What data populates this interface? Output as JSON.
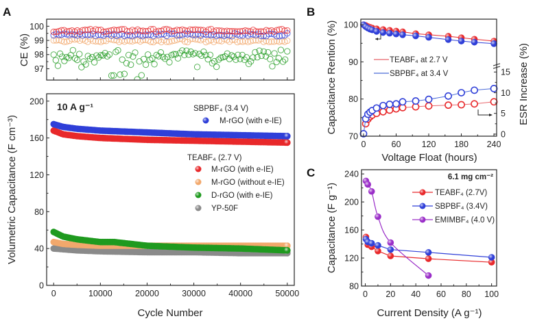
{
  "figure": {
    "panels": [
      {
        "letter": "A"
      },
      {
        "letter": "B"
      },
      {
        "letter": "C"
      }
    ]
  },
  "colors": {
    "red": "#e8282a",
    "blue": "#2f3fd8",
    "orange": "#f2a86c",
    "green": "#1f9a1f",
    "gray": "#8a8a8a",
    "purple": "#9a2ec8",
    "lightred": "#e8646a",
    "lightblue": "#4a6ad8"
  },
  "chart_data": [
    {
      "id": "A-top",
      "type": "scatter",
      "title": "",
      "xlabel": "",
      "ylabel": "CE (%)",
      "xlim": [
        -1500,
        51500
      ],
      "ylim": [
        96.2,
        100.5
      ],
      "yticks": [
        97,
        98,
        99,
        100
      ],
      "yticklabels": [
        "97",
        "98",
        "99",
        "100"
      ],
      "series": [
        {
          "name": "TEABF4 M-rGO (with e-IE)",
          "color_key": "red",
          "mean": 99.7,
          "spread": 0.1
        },
        {
          "name": "SBPBF4 M-rGO (with e-IE)",
          "color_key": "blue",
          "mean": 99.4,
          "spread": 0.1
        },
        {
          "name": "TEABF4 M-rGO (without e-IE)",
          "color_key": "orange",
          "mean": 99.0,
          "spread": 0.12
        },
        {
          "name": "TEABF4 D-rGO (with e-IE)",
          "color_key": "green",
          "mean": 98.0,
          "spread": 0.35
        }
      ]
    },
    {
      "id": "A-main",
      "type": "scatter",
      "title": "",
      "annotation": "10 A g⁻¹",
      "xlabel": "Cycle Number",
      "ylabel": "Volumetric Capacitance (F cm⁻³)",
      "xlim": [
        -1500,
        51500
      ],
      "ylim": [
        0,
        208
      ],
      "xticks": [
        0,
        10000,
        20000,
        30000,
        40000,
        50000
      ],
      "xticklabels": [
        "0",
        "10000",
        "20000",
        "30000",
        "40000",
        "50000"
      ],
      "yticks": [
        0,
        40,
        80,
        120,
        160,
        200
      ],
      "yticklabels": [
        "0",
        "40",
        "80",
        "120",
        "160",
        "200"
      ],
      "legend_groups": [
        {
          "title": "SBPBF₄ (3.4 V)",
          "items": [
            {
              "label": "M-rGO (with e-IE)",
              "color_key": "blue"
            }
          ]
        },
        {
          "title": "TEABF₄ (2.7 V)",
          "items": [
            {
              "label": "M-rGO (with e-IE)",
              "color_key": "red"
            },
            {
              "label": "M-rGO (without e-IE)",
              "color_key": "orange"
            },
            {
              "label": "D-rGO (with e-IE)",
              "color_key": "green"
            },
            {
              "label": "YP-50F",
              "color_key": "gray"
            }
          ]
        }
      ],
      "series": [
        {
          "name": "SBPBF4 M-rGO (with e-IE)",
          "color_key": "blue",
          "x": [
            0,
            2000,
            5000,
            10000,
            20000,
            30000,
            40000,
            50000
          ],
          "y": [
            175,
            172,
            170,
            168,
            166,
            164,
            163,
            162
          ]
        },
        {
          "name": "TEABF4 M-rGO (with e-IE)",
          "color_key": "red",
          "x": [
            0,
            2000,
            5000,
            10000,
            20000,
            30000,
            40000,
            50000
          ],
          "y": [
            168,
            164,
            162,
            160,
            158,
            157,
            156,
            155
          ]
        },
        {
          "name": "TEABF4 M-rGO (without e-IE)",
          "color_key": "orange",
          "x": [
            0,
            2000,
            5000,
            10000,
            20000,
            30000,
            40000,
            50000
          ],
          "y": [
            47,
            45,
            44,
            43,
            43,
            43,
            43,
            43
          ]
        },
        {
          "name": "TEABF4 D-rGO (with e-IE)",
          "color_key": "green",
          "x": [
            0,
            2000,
            5000,
            10000,
            13000,
            20000,
            30000,
            40000,
            50000
          ],
          "y": [
            58,
            53,
            50,
            47,
            47,
            43,
            41,
            40,
            38
          ]
        },
        {
          "name": "TEABF4 YP-50F",
          "color_key": "gray",
          "x": [
            0,
            5000,
            10000,
            20000,
            30000,
            40000,
            50000
          ],
          "y": [
            40,
            38,
            37,
            36,
            36,
            35,
            35
          ]
        }
      ]
    },
    {
      "id": "B",
      "type": "line",
      "title": "",
      "xlabel": "Voltage Float (hours)",
      "ylabel": "Capacitance Rention (%)",
      "y2label": "ESR Increase (%)",
      "xlim": [
        -5,
        245
      ],
      "ylim": [
        70,
        101.5
      ],
      "y2lim": [
        -0.5,
        19.5
      ],
      "xticks": [
        0,
        60,
        120,
        180,
        240
      ],
      "xticklabels": [
        "0",
        "60",
        "120",
        "180",
        "240"
      ],
      "yticks": [
        70,
        80,
        90,
        100
      ],
      "yticklabels": [
        "70",
        "80",
        "90",
        "100"
      ],
      "y2ticks": [
        0,
        5,
        10,
        15
      ],
      "y2ticklabels": [
        "0",
        "5",
        "10",
        "15"
      ],
      "legend": [
        {
          "label": "TEABF₄ at 2.7 V",
          "color_key": "lightred"
        },
        {
          "label": "SBPBF₄ at 3.4 V",
          "color_key": "lightblue"
        }
      ],
      "series": [
        {
          "name": "TEABF4 retention",
          "axis": "left",
          "marker": "filled",
          "color_key": "red",
          "x": [
            0,
            4,
            8,
            12,
            16,
            24,
            36,
            48,
            60,
            72,
            96,
            120,
            156,
            180,
            204,
            240
          ],
          "y": [
            100,
            99.8,
            99.5,
            99.3,
            99.1,
            98.9,
            98.7,
            98.5,
            98.3,
            98.1,
            97.6,
            97.3,
            96.9,
            96.5,
            96.1,
            95.6
          ]
        },
        {
          "name": "SBPBF4 retention",
          "axis": "left",
          "marker": "filled",
          "color_key": "blue",
          "x": [
            0,
            4,
            8,
            12,
            16,
            24,
            36,
            48,
            60,
            72,
            96,
            120,
            156,
            180,
            204,
            240
          ],
          "y": [
            100,
            99.5,
            99.1,
            98.8,
            98.6,
            98.2,
            97.9,
            97.7,
            97.5,
            97.3,
            97.0,
            96.6,
            96.0,
            95.6,
            95.3,
            94.9
          ]
        },
        {
          "name": "TEABF4 ESR",
          "axis": "right",
          "marker": "open",
          "color_key": "red",
          "x": [
            4,
            8,
            12,
            16,
            24,
            36,
            48,
            60,
            72,
            96,
            120,
            156,
            180,
            204,
            240
          ],
          "y": [
            2.5,
            3.6,
            4.2,
            4.6,
            5.0,
            5.4,
            5.8,
            6.1,
            6.4,
            6.6,
            6.8,
            7.0,
            7.1,
            7.3,
            7.8
          ]
        },
        {
          "name": "SBPBF4 ESR",
          "axis": "right",
          "marker": "open",
          "color_key": "blue",
          "x": [
            0,
            4,
            8,
            12,
            16,
            24,
            36,
            48,
            60,
            72,
            96,
            120,
            156,
            180,
            204,
            240
          ],
          "y": [
            0.1,
            3.7,
            4.8,
            5.3,
            5.7,
            6.3,
            6.9,
            7.2,
            7.3,
            7.8,
            8.0,
            8.4,
            9.2,
            10.0,
            10.6,
            11.0
          ]
        }
      ]
    },
    {
      "id": "C",
      "type": "line",
      "title": "",
      "annotation": "6.1 mg cm⁻²",
      "xlabel": "Current Density (A g⁻¹)",
      "ylabel": "Capacitance (F g⁻¹)",
      "xlim": [
        -3,
        104
      ],
      "ylim": [
        80,
        246
      ],
      "xticks": [
        0,
        20,
        40,
        60,
        80,
        100
      ],
      "xticklabels": [
        "0",
        "20",
        "40",
        "60",
        "80",
        "100"
      ],
      "yticks": [
        80,
        120,
        160,
        200,
        240
      ],
      "yticklabels": [
        "80",
        "120",
        "160",
        "200",
        "240"
      ],
      "legend": [
        {
          "label": "TEABF₄ (2.7V)",
          "color_key": "red"
        },
        {
          "label": "SBPBF₄ (3.4V)",
          "color_key": "blue"
        },
        {
          "label": "EMIMBF₄ (4.0 V)",
          "color_key": "purple"
        }
      ],
      "series": [
        {
          "name": "TEABF4 (2.7V)",
          "color_key": "red",
          "x": [
            0.5,
            2,
            5,
            10,
            20,
            50,
            100
          ],
          "y": [
            150,
            139,
            136,
            130,
            123,
            119,
            114
          ]
        },
        {
          "name": "SBPBF4 (3.4V)",
          "color_key": "blue",
          "x": [
            0.5,
            2,
            5,
            10,
            20,
            50,
            100
          ],
          "y": [
            147,
            143,
            141,
            138,
            132,
            128,
            121
          ]
        },
        {
          "name": "EMIMBF4 (4.0 V)",
          "color_key": "purple",
          "x": [
            0.5,
            2,
            5,
            10,
            20,
            50
          ],
          "y": [
            230,
            225,
            215,
            179,
            142,
            95
          ]
        }
      ]
    }
  ]
}
